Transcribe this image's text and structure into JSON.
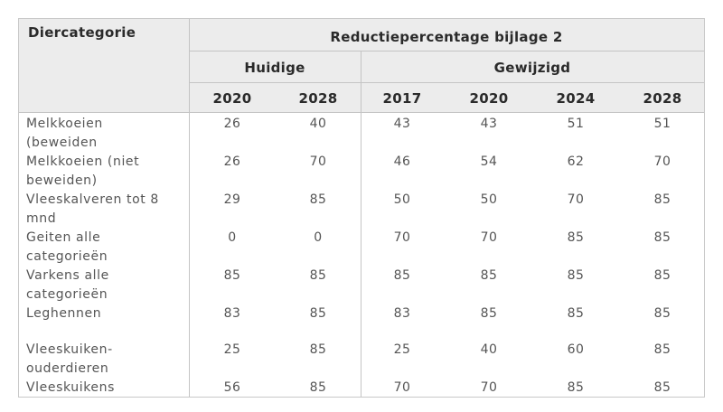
{
  "table": {
    "corner_header": "Diercategorie",
    "group_header": "Reductiepercentage bijlage 2",
    "subgroups": [
      "Huidige",
      "Gewijzigd"
    ],
    "years": [
      "2020",
      "2028",
      "2017",
      "2020",
      "2024",
      "2028"
    ],
    "rows": [
      {
        "label_lines": [
          "Melkkoeien",
          "(beweiden"
        ],
        "values": [
          "26",
          "40",
          "43",
          "43",
          "51",
          "51"
        ]
      },
      {
        "label_lines": [
          "Melkkoeien (niet",
          "beweiden)"
        ],
        "values": [
          "26",
          "70",
          "46",
          "54",
          "62",
          "70"
        ]
      },
      {
        "label_lines": [
          "Vleeskalveren tot 8",
          "mnd"
        ],
        "values": [
          "29",
          "85",
          "50",
          "50",
          "70",
          "85"
        ]
      },
      {
        "label_lines": [
          "Geiten alle",
          "categorieën"
        ],
        "values": [
          "0",
          "0",
          "70",
          "70",
          "85",
          "85"
        ]
      },
      {
        "label_lines": [
          "Varkens alle",
          "categorieën"
        ],
        "values": [
          "85",
          "85",
          "85",
          "85",
          "85",
          "85"
        ]
      },
      {
        "label_lines": [
          "Leghennen"
        ],
        "values": [
          "83",
          "85",
          "83",
          "85",
          "85",
          "85"
        ]
      },
      {
        "label_lines": [
          "Vleeskuiken-",
          "ouderdieren"
        ],
        "values": [
          "25",
          "85",
          "25",
          "40",
          "60",
          "85"
        ]
      },
      {
        "label_lines": [
          "Vleeskuikens"
        ],
        "values": [
          "56",
          "85",
          "70",
          "70",
          "85",
          "85"
        ]
      }
    ]
  }
}
